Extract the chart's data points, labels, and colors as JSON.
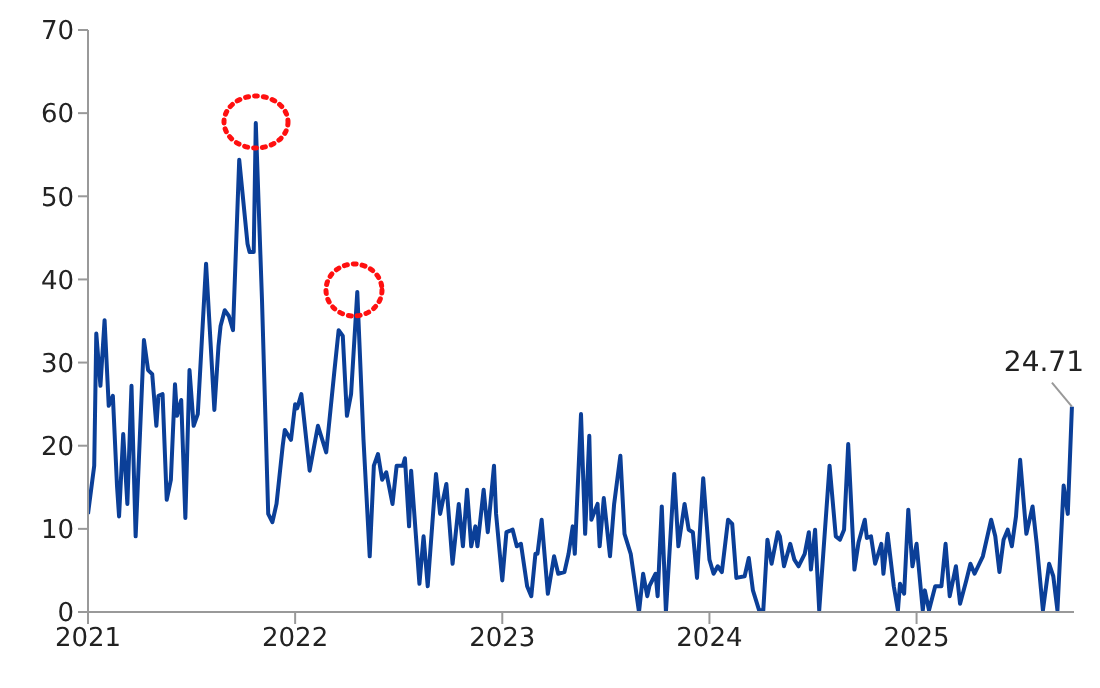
{
  "chart_data": {
    "type": "line",
    "xlim": [
      2021,
      2025.76
    ],
    "xticks": [
      2021,
      2022,
      2023,
      2024,
      2025
    ],
    "ylim": [
      0,
      70
    ],
    "yticks": [
      0,
      10,
      20,
      30,
      40,
      50,
      60,
      70
    ],
    "grid": false,
    "legend": false,
    "marker": "none",
    "line_style": "solid",
    "annotations": [
      {
        "text": "24.71",
        "x": 2025.75,
        "y": 24.71
      }
    ],
    "series": [
      {
        "color": "#0b3f98",
        "x": [
          2021.0,
          2021.03,
          2021.04,
          2021.06,
          2021.08,
          2021.1,
          2021.12,
          2021.14,
          2021.15,
          2021.17,
          2021.19,
          2021.21,
          2021.23,
          2021.27,
          2021.29,
          2021.31,
          2021.33,
          2021.34,
          2021.36,
          2021.38,
          2021.4,
          2021.42,
          2021.43,
          2021.45,
          2021.47,
          2021.49,
          2021.51,
          2021.53,
          2021.57,
          2021.61,
          2021.63,
          2021.64,
          2021.66,
          2021.68,
          2021.7,
          2021.73,
          2021.77,
          2021.78,
          2021.8,
          2021.81,
          2021.84,
          2021.87,
          2021.89,
          2021.91,
          2021.94,
          2021.95,
          2021.98,
          2022.0,
          2022.01,
          2022.03,
          2022.07,
          2022.11,
          2022.15,
          2022.19,
          2022.21,
          2022.23,
          2022.25,
          2022.27,
          2022.3,
          2022.33,
          2022.36,
          2022.38,
          2022.4,
          2022.42,
          2022.44,
          2022.47,
          2022.49,
          2022.52,
          2022.53,
          2022.55,
          2022.56,
          2022.6,
          2022.62,
          2022.64,
          2022.68,
          2022.7,
          2022.73,
          2022.76,
          2022.79,
          2022.81,
          2022.83,
          2022.85,
          2022.87,
          2022.88,
          2022.91,
          2022.93,
          2022.96,
          2022.97,
          2023.0,
          2023.02,
          2023.05,
          2023.07,
          2023.09,
          2023.12,
          2023.14,
          2023.16,
          2023.17,
          2023.19,
          2023.22,
          2023.25,
          2023.27,
          2023.3,
          2023.32,
          2023.34,
          2023.35,
          2023.38,
          2023.4,
          2023.42,
          2023.43,
          2023.46,
          2023.47,
          2023.49,
          2023.52,
          2023.54,
          2023.57,
          2023.59,
          2023.62,
          2023.66,
          2023.68,
          2023.7,
          2023.71,
          2023.74,
          2023.75,
          2023.77,
          2023.79,
          2023.83,
          2023.85,
          2023.88,
          2023.9,
          2023.92,
          2023.94,
          2023.97,
          2024.0,
          2024.02,
          2024.04,
          2024.06,
          2024.09,
          2024.11,
          2024.13,
          2024.17,
          2024.19,
          2024.21,
          2024.24,
          2024.26,
          2024.28,
          2024.3,
          2024.33,
          2024.34,
          2024.36,
          2024.39,
          2024.41,
          2024.43,
          2024.46,
          2024.48,
          2024.49,
          2024.51,
          2024.53,
          2024.58,
          2024.61,
          2024.63,
          2024.65,
          2024.67,
          2024.7,
          2024.72,
          2024.75,
          2024.76,
          2024.78,
          2024.8,
          2024.83,
          2024.84,
          2024.86,
          2024.89,
          2024.91,
          2024.92,
          2024.94,
          2024.96,
          2024.98,
          2025.0,
          2025.03,
          2025.04,
          2025.06,
          2025.09,
          2025.12,
          2025.14,
          2025.16,
          2025.19,
          2025.21,
          2025.24,
          2025.26,
          2025.28,
          2025.32,
          2025.36,
          2025.38,
          2025.4,
          2025.42,
          2025.44,
          2025.46,
          2025.48,
          2025.5,
          2025.53,
          2025.56,
          2025.58,
          2025.61,
          2025.64,
          2025.66,
          2025.68,
          2025.71,
          2025.73,
          2025.75
        ],
        "values": [
          11.8,
          17.6,
          33.5,
          27.2,
          35.1,
          24.8,
          26,
          15.2,
          11.5,
          21.4,
          13,
          27.2,
          9.1,
          32.7,
          29.1,
          28.6,
          22.4,
          26,
          26.2,
          13.5,
          15.9,
          27.4,
          23.6,
          25.5,
          11.3,
          29.1,
          22.4,
          23.8,
          41.9,
          24.3,
          32,
          34.4,
          36.3,
          35.6,
          33.9,
          54.4,
          44.3,
          43.3,
          43.3,
          58.8,
          37.5,
          11.8,
          10.8,
          13,
          20,
          21.9,
          20.7,
          25,
          24.5,
          26.2,
          17,
          22.4,
          19.2,
          29.1,
          33.9,
          33.2,
          23.6,
          26.2,
          38.5,
          20.7,
          6.7,
          17.6,
          19,
          15.9,
          16.8,
          13,
          17.6,
          17.6,
          18.5,
          10.3,
          17,
          3.4,
          9.1,
          3.1,
          16.6,
          11.8,
          15.4,
          5.8,
          13,
          7.9,
          14.7,
          7.9,
          10.3,
          7.9,
          14.7,
          9.6,
          17.6,
          11.8,
          3.8,
          9.6,
          9.9,
          7.9,
          8.2,
          3.1,
          1.9,
          7,
          7,
          11.1,
          2.2,
          6.7,
          4.6,
          4.8,
          7,
          10.3,
          7,
          23.8,
          9.4,
          21.2,
          11.1,
          13,
          7.9,
          13.7,
          6.7,
          13,
          18.8,
          9.4,
          7,
          0,
          4.6,
          1.9,
          3.1,
          4.6,
          1.9,
          12.7,
          0,
          16.6,
          7.9,
          13,
          9.9,
          9.6,
          4.1,
          16.1,
          6.3,
          4.6,
          5.5,
          4.8,
          11.1,
          10.6,
          4.1,
          4.3,
          6.5,
          2.6,
          0.2,
          0.2,
          8.7,
          5.8,
          9.6,
          9.1,
          5.5,
          8.2,
          6.3,
          5.5,
          7,
          9.6,
          5.1,
          9.9,
          0.2,
          17.6,
          9.1,
          8.7,
          9.9,
          20.2,
          5.1,
          8.4,
          11.1,
          8.9,
          9.1,
          5.8,
          8.2,
          4.6,
          9.4,
          3.1,
          0.2,
          3.4,
          2.2,
          12.3,
          5.5,
          8.2,
          0.2,
          2.6,
          0.2,
          3.1,
          3.1,
          8.2,
          1.9,
          5.5,
          1,
          3.8,
          5.8,
          4.6,
          6.7,
          11.1,
          9.1,
          4.8,
          8.7,
          9.9,
          7.9,
          11.5,
          18.3,
          9.4,
          12.7,
          8.2,
          0.2,
          5.8,
          4.3,
          0.2,
          15.2,
          11.8,
          24.71
        ]
      }
    ]
  }
}
